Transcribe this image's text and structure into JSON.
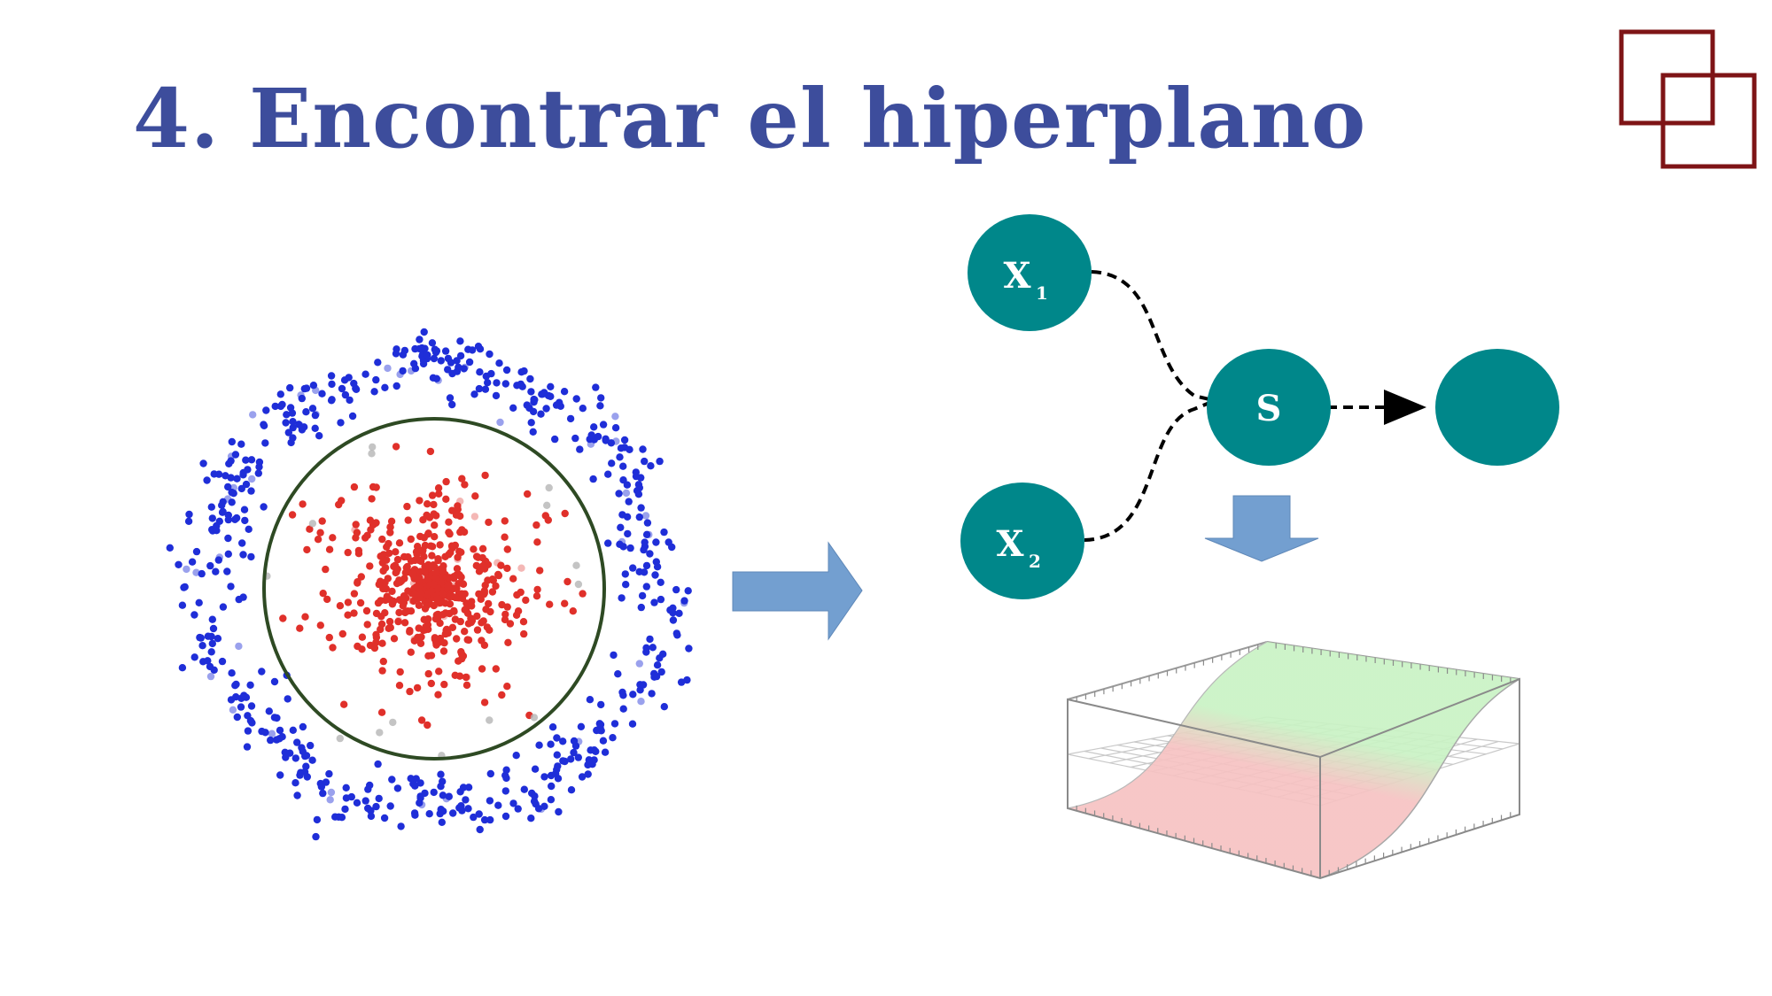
{
  "slide": {
    "title": "4. Encontrar el hiperplano"
  },
  "colors": {
    "title": "#3d4d9c",
    "logo": "#7e1416",
    "inner_class": "#e0302a",
    "outer_class": "#1f2ed8",
    "boundary_circle": "#2e4a23",
    "arrow_fill": "#739fd0",
    "node_fill": "#00878a",
    "surface_green": "#c9f2c4",
    "surface_red": "#f6c2c2"
  },
  "icons": {
    "logo": "two-overlapping-squares-icon",
    "transform_arrow": "right-arrow-icon",
    "down_arrow": "down-arrow-icon"
  },
  "network": {
    "nodes": {
      "x1": {
        "base": "X",
        "sub": "1"
      },
      "x2": {
        "base": "X",
        "sub": "2"
      },
      "s": {
        "label": "S"
      },
      "out": {
        "label": ""
      }
    }
  }
}
